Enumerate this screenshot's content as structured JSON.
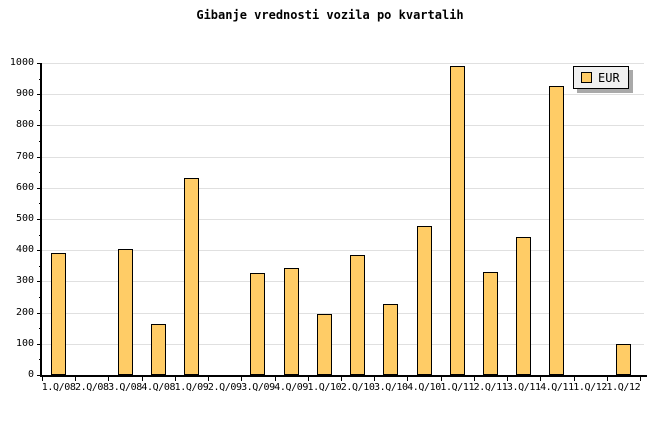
{
  "chart_data": {
    "type": "bar",
    "title": "Gibanje vrednosti vozila po kvartalih",
    "categories": [
      "1.Q/08",
      "2.Q/08",
      "3.Q/08",
      "4.Q/08",
      "1.Q/09",
      "2.Q/09",
      "3.Q/09",
      "4.Q/09",
      "1.Q/10",
      "2.Q/10",
      "3.Q/10",
      "4.Q/10",
      "1.Q/11",
      "2.Q/11",
      "3.Q/11",
      "4.Q/11",
      "1.Q/12",
      "1.Q/12"
    ],
    "series": [
      {
        "name": "EUR",
        "values": [
          392,
          null,
          405,
          163,
          633,
          null,
          328,
          343,
          195,
          386,
          227,
          479,
          991,
          329,
          442,
          926,
          null,
          100
        ]
      }
    ],
    "legend": [
      "EUR"
    ],
    "legend_position": "top-right",
    "xlabel": "",
    "ylabel": "",
    "ylim": [
      0,
      1000
    ],
    "y_tick_step": 100,
    "y_minor_tick_step": 50,
    "y_tick_labels": [
      "0",
      "100",
      "200",
      "300",
      "400",
      "500",
      "600",
      "700",
      "800",
      "900",
      "1000"
    ],
    "grid": true,
    "colors": {
      "bar_fill": "#FFCC66",
      "bar_border": "#000000",
      "grid": "#E0E0E0",
      "axis": "#000000",
      "background": "#FFFFFF",
      "legend_fill": "#F0F0F0",
      "legend_shadow": "#A9A9A9",
      "text": "#000000"
    }
  }
}
